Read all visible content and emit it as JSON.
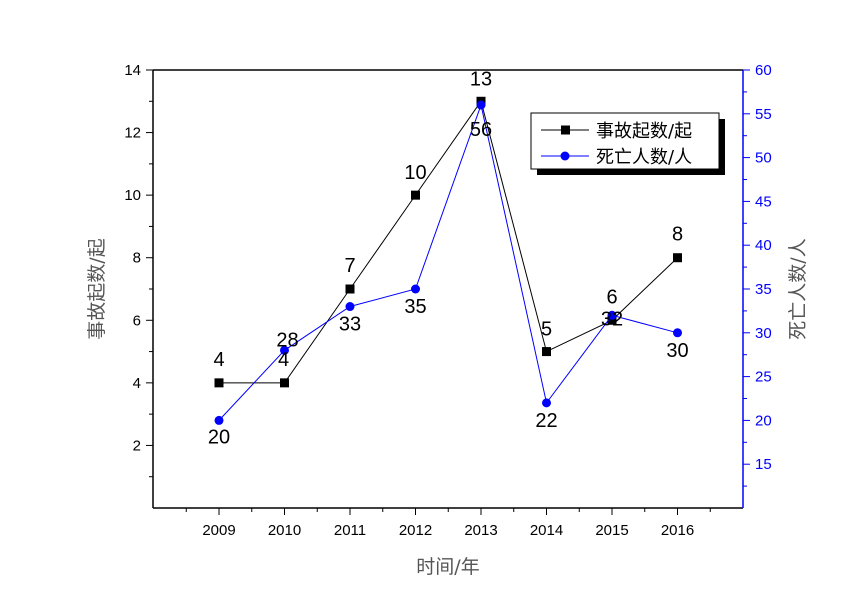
{
  "chart_data": {
    "type": "line",
    "xlabel": "时间/年",
    "categories": [
      "2009",
      "2010",
      "2011",
      "2012",
      "2013",
      "2014",
      "2015",
      "2016"
    ],
    "y_left": {
      "label": "事故起数/起",
      "range": [
        0,
        14
      ],
      "ticks": [
        2,
        4,
        6,
        8,
        10,
        12,
        14
      ],
      "color": "#000000"
    },
    "y_right": {
      "label": "死亡人数/人",
      "range": [
        10,
        60
      ],
      "ticks": [
        15,
        20,
        25,
        30,
        35,
        40,
        45,
        50,
        55,
        60
      ],
      "color": "#0000ff"
    },
    "series": [
      {
        "name": "事故起数/起",
        "axis": "left",
        "color": "#000000",
        "marker": "square",
        "values": [
          4,
          4,
          7,
          10,
          13,
          5,
          6,
          8
        ],
        "labels": [
          "4",
          "4",
          "7",
          "10",
          "13",
          "5",
          "6",
          "8"
        ]
      },
      {
        "name": "死亡人数/人",
        "axis": "right",
        "color": "#0000ff",
        "marker": "circle",
        "values": [
          20,
          28,
          33,
          35,
          56,
          22,
          32,
          30
        ],
        "labels": [
          "20",
          "28",
          "33",
          "35",
          "56",
          "22",
          "32",
          "30"
        ]
      }
    ],
    "legend_position": "top-right",
    "grid": false
  }
}
